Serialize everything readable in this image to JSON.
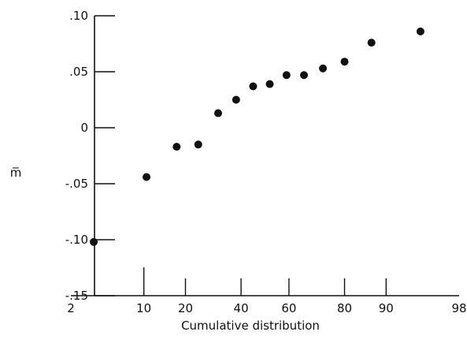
{
  "chart_data": {
    "type": "scatter",
    "title": "",
    "xlabel": "Cumulative distribution",
    "ylabel": "m̅",
    "x_scale": "normal-probability",
    "xlim": [
      2,
      98
    ],
    "ylim": [
      -0.15,
      0.1
    ],
    "x_ticks": [
      2,
      10,
      20,
      40,
      60,
      80,
      90,
      98
    ],
    "x_tick_labels": [
      "2",
      "10",
      "20",
      "40",
      "60",
      "80",
      "90",
      "98"
    ],
    "y_ticks": [
      0.1,
      0.05,
      0,
      -0.05,
      -0.1,
      -0.15
    ],
    "y_tick_labels": [
      ".10",
      ".05",
      "0",
      "-.05",
      "-.10",
      "-.15"
    ],
    "grid": false,
    "legend": "none",
    "marker_color": "#111111",
    "series": [
      {
        "x": [
          3.5,
          10.5,
          17.5,
          24,
          31,
          38,
          45,
          52,
          59,
          66,
          73,
          80,
          87,
          95
        ],
        "y": [
          -0.102,
          -0.044,
          -0.017,
          -0.015,
          0.013,
          0.025,
          0.037,
          0.039,
          0.047,
          0.047,
          0.053,
          0.059,
          0.076,
          0.086
        ]
      }
    ]
  }
}
